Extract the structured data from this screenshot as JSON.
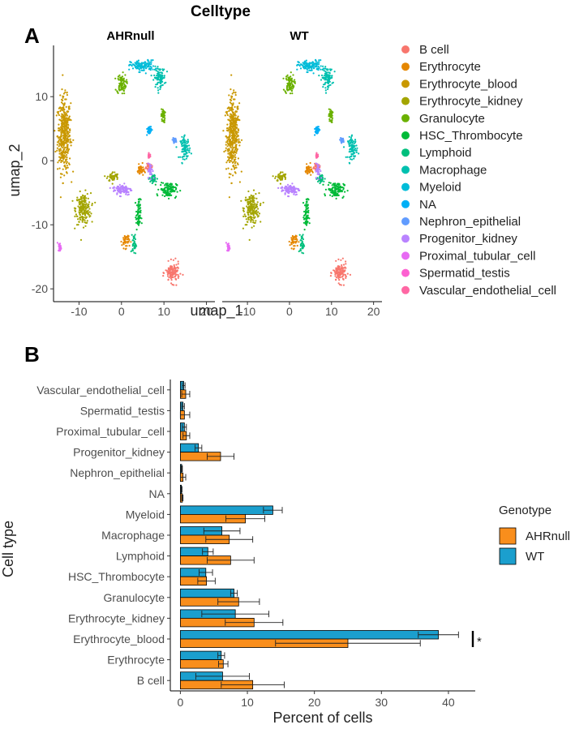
{
  "figure": {
    "panel_a_letter": "A",
    "panel_b_letter": "B"
  },
  "chart_data": [
    {
      "type": "scatter",
      "title": "Celltype",
      "facets": [
        "AHRnull",
        "WT"
      ],
      "xlabel": "umap_1",
      "ylabel": "umap_2",
      "xlim": [
        -16,
        22
      ],
      "ylim": [
        -22,
        18
      ],
      "x_ticks": [
        -10,
        0,
        10,
        20
      ],
      "x_tick_labels": [
        "-10",
        "0",
        "10",
        "20"
      ],
      "y_ticks": [
        10,
        0,
        -10,
        -20
      ],
      "y_tick_labels": [
        "10",
        "0",
        "-10",
        "-20"
      ],
      "legend": [
        {
          "label": "B cell",
          "color": "#F8766D"
        },
        {
          "label": "Erythrocyte",
          "color": "#E58700"
        },
        {
          "label": "Erythrocyte_blood",
          "color": "#C99800"
        },
        {
          "label": "Erythrocyte_kidney",
          "color": "#A3A500"
        },
        {
          "label": "Granulocyte",
          "color": "#6BB100"
        },
        {
          "label": "HSC_Thrombocyte",
          "color": "#00BA38"
        },
        {
          "label": "Lymphoid",
          "color": "#00BF7D"
        },
        {
          "label": "Macrophage",
          "color": "#00C0AF"
        },
        {
          "label": "Myeloid",
          "color": "#00BCD8"
        },
        {
          "label": "NA",
          "color": "#00B0F6"
        },
        {
          "label": "Nephron_epithelial",
          "color": "#619CFF"
        },
        {
          "label": "Progenitor_kidney",
          "color": "#B983FF"
        },
        {
          "label": "Proximal_tubular_cell",
          "color": "#E76BF3"
        },
        {
          "label": "Spermatid_testis",
          "color": "#FD61D1"
        },
        {
          "label": "Vascular_endothelial_cell",
          "color": "#FF67A4"
        }
      ],
      "clusters": [
        {
          "cell": "Erythrocyte_blood",
          "color": "#C99800",
          "x": -13.5,
          "y": 4,
          "sx": 1.4,
          "sy": 5.2
        },
        {
          "cell": "Erythrocyte_kidney",
          "color": "#A3A500",
          "x": -9,
          "y": -7.5,
          "sx": 1.6,
          "sy": 2.2
        },
        {
          "cell": "Erythrocyte_kidney",
          "color": "#A3A500",
          "x": -2,
          "y": -2.5,
          "sx": 1.2,
          "sy": 0.7
        },
        {
          "cell": "Granulocyte",
          "color": "#6BB100",
          "x": 0,
          "y": 12,
          "sx": 1.0,
          "sy": 1.4
        },
        {
          "cell": "Granulocyte",
          "color": "#6BB100",
          "x": 9.8,
          "y": 7,
          "sx": 0.4,
          "sy": 1.0
        },
        {
          "cell": "Myeloid",
          "color": "#00BCD8",
          "x": 5,
          "y": 14.8,
          "sx": 2.6,
          "sy": 0.8
        },
        {
          "cell": "Macrophage",
          "color": "#00C0AF",
          "x": 9,
          "y": 13,
          "sx": 1.2,
          "sy": 1.4
        },
        {
          "cell": "Macrophage",
          "color": "#00C0AF",
          "x": 15,
          "y": 2,
          "sx": 1.0,
          "sy": 1.5
        },
        {
          "cell": "Erythrocyte",
          "color": "#E58700",
          "x": 1,
          "y": -12.5,
          "sx": 0.8,
          "sy": 1.0
        },
        {
          "cell": "Erythrocyte",
          "color": "#E58700",
          "x": 4.5,
          "y": -1.5,
          "sx": 0.7,
          "sy": 0.8
        },
        {
          "cell": "B cell",
          "color": "#F8766D",
          "x": 12,
          "y": -17.5,
          "sx": 1.5,
          "sy": 1.4
        },
        {
          "cell": "B cell",
          "color": "#F8766D",
          "x": 6.5,
          "y": -1.0,
          "sx": 0.6,
          "sy": 0.4
        },
        {
          "cell": "HSC_Thrombocyte",
          "color": "#00BA38",
          "x": 11,
          "y": -4.5,
          "sx": 1.8,
          "sy": 1.1
        },
        {
          "cell": "HSC_Thrombocyte",
          "color": "#00BA38",
          "x": 4,
          "y": -8.5,
          "sx": 0.5,
          "sy": 2.2
        },
        {
          "cell": "Lymphoid",
          "color": "#00BF7D",
          "x": 7.5,
          "y": -2.8,
          "sx": 0.8,
          "sy": 0.6
        },
        {
          "cell": "Lymphoid",
          "color": "#00BF7D",
          "x": 3,
          "y": -13,
          "sx": 0.4,
          "sy": 1.4
        },
        {
          "cell": "Progenitor_kidney",
          "color": "#B983FF",
          "x": 0.2,
          "y": -4.5,
          "sx": 2.0,
          "sy": 0.8
        },
        {
          "cell": "Progenitor_kidney",
          "color": "#B983FF",
          "x": 6.8,
          "y": -1.5,
          "sx": 0.5,
          "sy": 1.0
        },
        {
          "cell": "Proximal_tubular_cell",
          "color": "#E76BF3",
          "x": -14.5,
          "y": -13.5,
          "sx": 0.3,
          "sy": 0.6
        },
        {
          "cell": "Vascular_endothelial_cell",
          "color": "#FF67A4",
          "x": 6.5,
          "y": 0.8,
          "sx": 0.2,
          "sy": 0.3
        },
        {
          "cell": "Nephron_epithelial",
          "color": "#619CFF",
          "x": 12.5,
          "y": 3.2,
          "sx": 0.4,
          "sy": 0.3
        },
        {
          "cell": "NA",
          "color": "#00B0F6",
          "x": 6.5,
          "y": 4.8,
          "sx": 0.6,
          "sy": 0.6
        }
      ]
    },
    {
      "type": "bar",
      "orientation": "horizontal",
      "xlabel": "Percent of cells",
      "ylabel": "Cell type",
      "xlim": [
        -1.5,
        44
      ],
      "x_ticks": [
        0,
        10,
        20,
        30,
        40
      ],
      "x_tick_labels": [
        "0",
        "10",
        "20",
        "30",
        "40"
      ],
      "categories": [
        "Vascular_endothelial_cell",
        "Spermatid_testis",
        "Proximal_tubular_cell",
        "Progenitor_kidney",
        "Nephron_epithelial",
        "NA",
        "Myeloid",
        "Macrophage",
        "Lymphoid",
        "HSC_Thrombocyte",
        "Granulocyte",
        "Erythrocyte_kidney",
        "Erythrocyte_blood",
        "Erythrocyte",
        "B cell"
      ],
      "legend_title": "Genotype",
      "series": [
        {
          "name": "WT",
          "color": "#1B9FCE",
          "values": [
            0.5,
            0.4,
            0.6,
            2.7,
            0.2,
            0.15,
            13.8,
            6.2,
            4.1,
            3.8,
            8.0,
            8.2,
            38.5,
            6.1,
            6.3
          ],
          "errors": [
            0.2,
            0.2,
            0.3,
            0.5,
            0.1,
            0.1,
            1.4,
            2.7,
            0.8,
            1.0,
            0.5,
            5.0,
            3.0,
            0.5,
            4.0
          ]
        },
        {
          "name": "AHRnull",
          "color": "#F98E1C",
          "values": [
            0.8,
            0.6,
            0.9,
            6.0,
            0.4,
            0.3,
            9.7,
            7.3,
            7.5,
            3.9,
            8.7,
            11.0,
            25.0,
            6.4,
            10.8
          ],
          "errors": [
            0.6,
            0.8,
            0.5,
            2.0,
            0.4,
            0.1,
            2.9,
            3.5,
            3.5,
            1.3,
            3.1,
            4.3,
            10.8,
            0.7,
            4.7
          ]
        }
      ],
      "legend_order": [
        "AHRnull",
        "WT"
      ],
      "annotations": [
        {
          "category": "Erythrocyte_blood",
          "text": "*"
        }
      ]
    }
  ]
}
